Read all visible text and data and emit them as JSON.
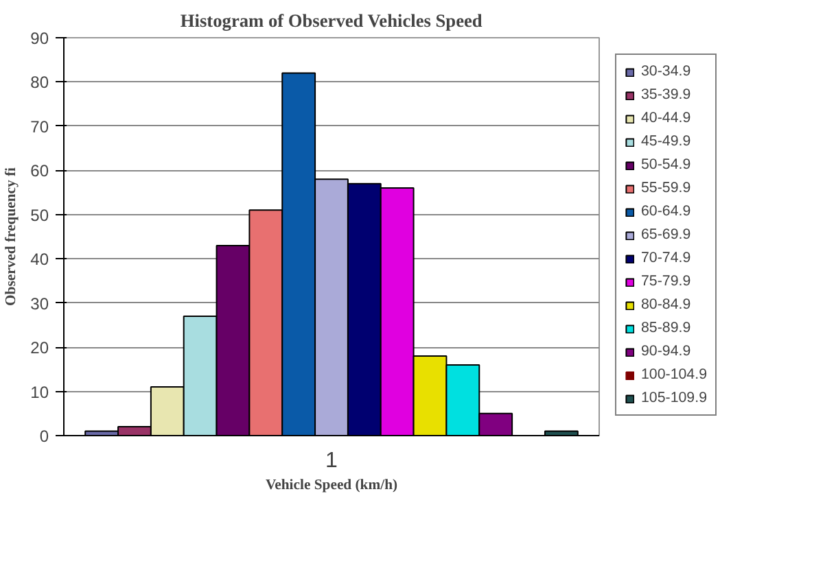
{
  "chart_data": {
    "type": "bar",
    "title": "Histogram of Observed Vehicles Speed",
    "xlabel": "Vehicle Speed (km/h)",
    "ylabel": "Observed frequency fi",
    "categories": [
      "1"
    ],
    "series": [
      {
        "name": "30-34.9",
        "color": "#6a6aa8",
        "values": [
          1
        ]
      },
      {
        "name": "35-39.9",
        "color": "#993366",
        "values": [
          2
        ]
      },
      {
        "name": "40-44.9",
        "color": "#e8e6b0",
        "values": [
          11
        ]
      },
      {
        "name": "45-49.9",
        "color": "#a8dde0",
        "values": [
          27
        ]
      },
      {
        "name": "50-54.9",
        "color": "#660066",
        "values": [
          43
        ]
      },
      {
        "name": "55-59.9",
        "color": "#e87070",
        "values": [
          51
        ]
      },
      {
        "name": "60-64.9",
        "color": "#0a5aa8",
        "values": [
          82
        ]
      },
      {
        "name": "65-69.9",
        "color": "#aaaad8",
        "values": [
          58
        ]
      },
      {
        "name": "70-74.9",
        "color": "#000070",
        "values": [
          57
        ]
      },
      {
        "name": "75-79.9",
        "color": "#e000e0",
        "values": [
          56
        ]
      },
      {
        "name": "80-84.9",
        "color": "#e8e000",
        "values": [
          18
        ]
      },
      {
        "name": "85-89.9",
        "color": "#00e0e0",
        "values": [
          16
        ]
      },
      {
        "name": "90-94.9",
        "color": "#800080",
        "values": [
          5
        ]
      },
      {
        "name": "100-104.9",
        "color": "#800000",
        "values": [
          0
        ]
      },
      {
        "name": "105-109.9",
        "color": "#1f5050",
        "values": [
          1
        ]
      }
    ],
    "ylim": [
      0,
      90
    ],
    "yticks": [
      0,
      10,
      20,
      30,
      40,
      50,
      60,
      70,
      80,
      90
    ],
    "grid": "y",
    "legend": "right"
  }
}
